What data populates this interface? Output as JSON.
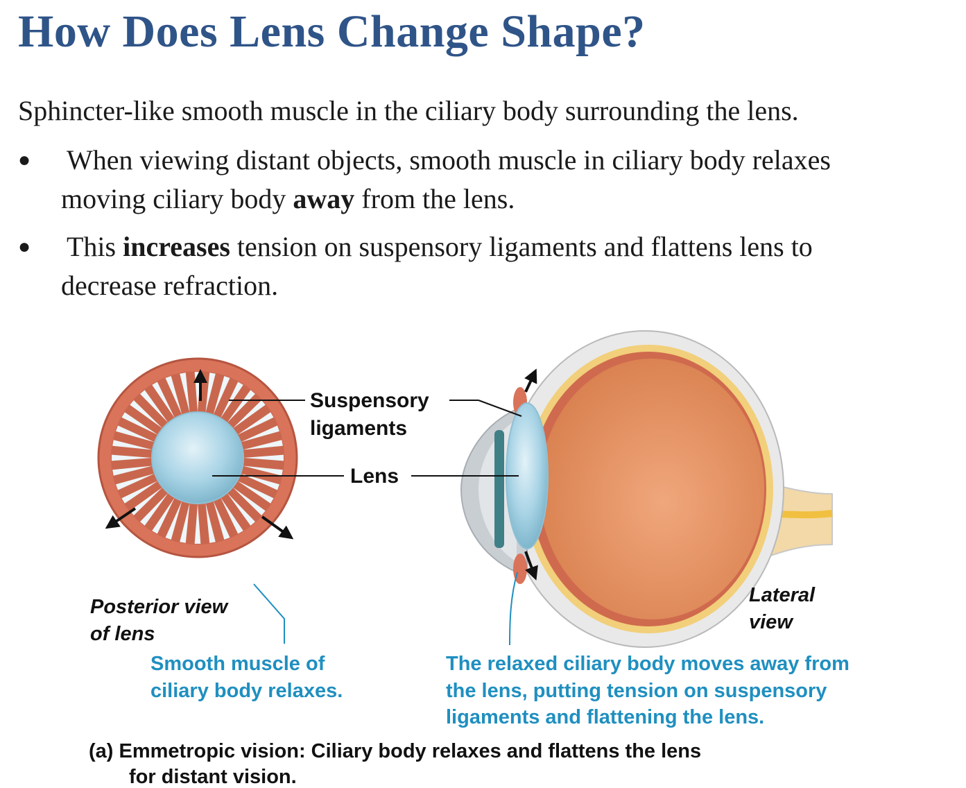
{
  "title": "How Does Lens Change Shape?",
  "intro": "Sphincter-like smooth muscle in the ciliary body surrounding the lens.",
  "bullets": [
    {
      "pre": "When viewing distant objects, smooth muscle in ciliary body relaxes",
      "line2_pre": "moving ciliary body ",
      "bold": "away",
      "post": " from the lens."
    },
    {
      "pre": "This ",
      "bold": "increases",
      "post": " tension on suspensory ligaments and flattens lens to",
      "line2": "decrease refraction."
    }
  ],
  "figure": {
    "label_suspensory_1": "Suspensory",
    "label_suspensory_2": "ligaments",
    "label_lens": "Lens",
    "label_posterior_1": "Posterior view",
    "label_posterior_2": "of lens",
    "label_lateral_1": "Lateral",
    "label_lateral_2": "view",
    "note_left_1": "Smooth muscle of",
    "note_left_2": "ciliary body relaxes.",
    "note_right_1": "The relaxed ciliary body moves away from",
    "note_right_2": "the lens, putting tension on suspensory",
    "note_right_3": "ligaments and flattening the lens.",
    "caption_1": "(a) Emmetropic vision: Ciliary body relaxes and flattens the lens",
    "caption_2": "for distant vision.",
    "colors": {
      "title": "#2f5488",
      "note": "#1f8fc0",
      "muscle": "#d9735a",
      "lens": "#a9d4e6",
      "eye_interior": "#e59a70"
    }
  }
}
